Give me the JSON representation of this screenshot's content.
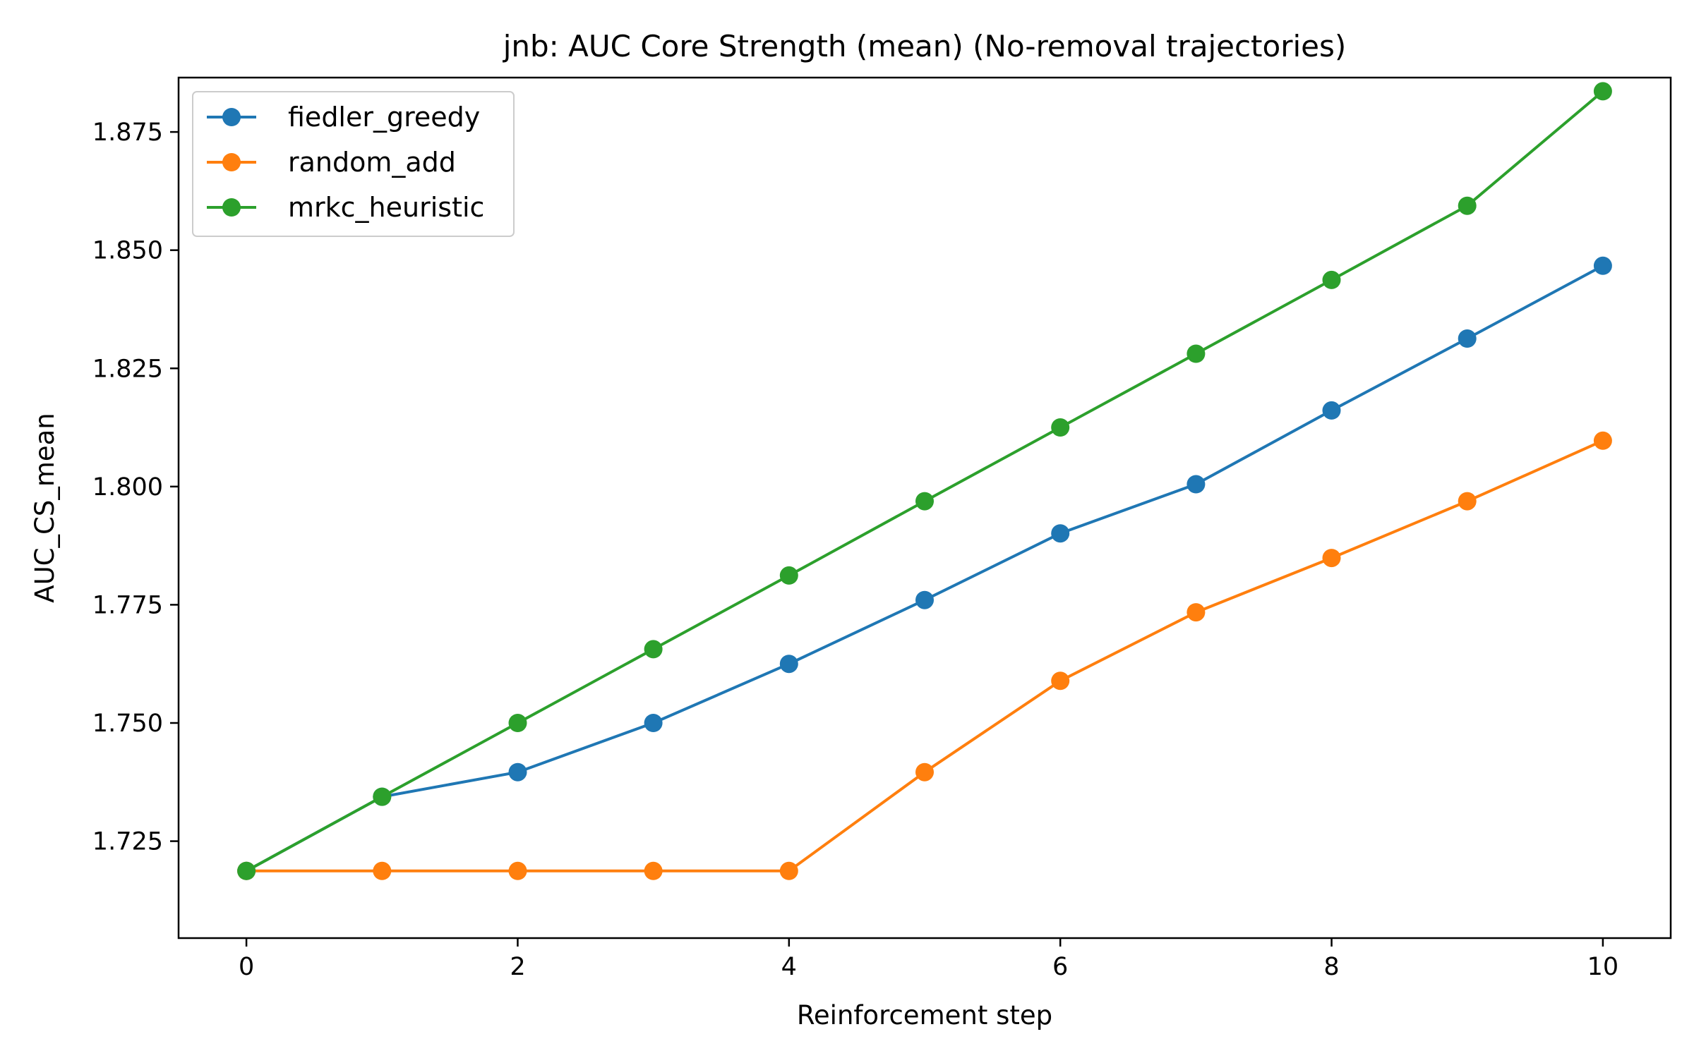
{
  "chart_data": {
    "type": "line",
    "title": "jnb: AUC Core Strength (mean) (No-removal trajectories)",
    "xlabel": "Reinforcement step",
    "ylabel": "AUC_CS_mean",
    "x": [
      0,
      1,
      2,
      3,
      4,
      5,
      6,
      7,
      8,
      9,
      10
    ],
    "xlim": [
      -0.5,
      10.5
    ],
    "ylim": [
      1.7045,
      1.8865
    ],
    "xticks": [
      0,
      2,
      4,
      6,
      8,
      10
    ],
    "xtick_labels": [
      "0",
      "2",
      "4",
      "6",
      "8",
      "10"
    ],
    "yticks": [
      1.725,
      1.75,
      1.775,
      1.8,
      1.825,
      1.85,
      1.875
    ],
    "ytick_labels": [
      "1.725",
      "1.750",
      "1.775",
      "1.800",
      "1.825",
      "1.850",
      "1.875"
    ],
    "grid": false,
    "legend_position": "top-left",
    "series": [
      {
        "name": "fiedler_greedy",
        "color": "#1f77b4",
        "values": [
          1.7187,
          1.7344,
          1.7396,
          1.75,
          1.7625,
          1.776,
          1.7901,
          1.8005,
          1.8161,
          1.8313,
          1.8467
        ]
      },
      {
        "name": "random_add",
        "color": "#ff7f0e",
        "values": [
          1.7187,
          1.7187,
          1.7187,
          1.7187,
          1.7187,
          1.7396,
          1.7589,
          1.7734,
          1.7849,
          1.7969,
          1.8097
        ]
      },
      {
        "name": "mrkc_heuristic",
        "color": "#2ca02c",
        "values": [
          1.7187,
          1.7344,
          1.75,
          1.7656,
          1.7812,
          1.7969,
          1.8125,
          1.8281,
          1.8437,
          1.8594,
          1.8836
        ]
      }
    ]
  }
}
